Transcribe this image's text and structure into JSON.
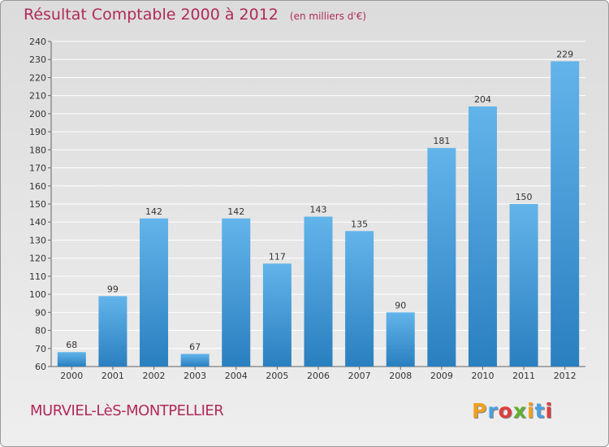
{
  "header": {
    "title": "Résultat Comptable 2000 à 2012",
    "unit": "(en milliers d'€)"
  },
  "footer": {
    "place": "MURVIEL-LèS-MONTPELLIER",
    "brand": [
      "P",
      "r",
      "o",
      "x",
      "i",
      "t",
      "i"
    ],
    "brand_colors": [
      "#f0a020",
      "#4aa0e0",
      "#e03c3c",
      "#60b030",
      "#f0a020",
      "#4aa0e0",
      "#e03c3c"
    ]
  },
  "colors": {
    "bar_light": "#62b4ea",
    "bar_dark": "#2a7fbf",
    "grid": "#ffffff",
    "axis": "#666666",
    "text": "#333333",
    "accent": "#b02a5a"
  },
  "chart_data": {
    "type": "bar",
    "title": "Résultat Comptable 2000 à 2012",
    "xlabel": "",
    "ylabel": "",
    "categories": [
      "2000",
      "2001",
      "2002",
      "2003",
      "2004",
      "2005",
      "2006",
      "2007",
      "2008",
      "2009",
      "2010",
      "2011",
      "2012"
    ],
    "values": [
      68,
      99,
      142,
      67,
      142,
      117,
      143,
      135,
      90,
      181,
      204,
      150,
      229
    ],
    "ylim": [
      60,
      240
    ],
    "yticks": [
      60,
      70,
      80,
      90,
      100,
      110,
      120,
      130,
      140,
      150,
      160,
      170,
      180,
      190,
      200,
      210,
      220,
      230,
      240
    ],
    "grid": true,
    "legend": "none"
  }
}
